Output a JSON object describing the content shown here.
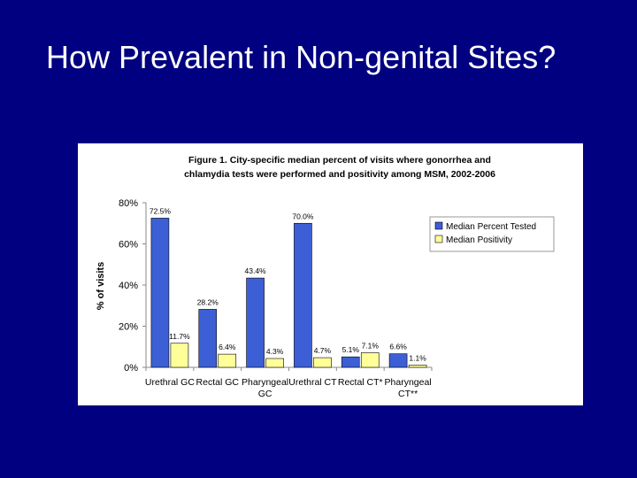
{
  "slide": {
    "title": "How Prevalent in Non-genital Sites?"
  },
  "chart_data": {
    "type": "bar",
    "title_lines": [
      "Figure 1. City-specific median percent of visits where gonorrhea and",
      "chlamydia tests were performed and positivity among MSM, 2002-2006"
    ],
    "ylabel": "% of visits",
    "xlabel": "",
    "ylim": [
      0,
      80
    ],
    "yticks": [
      0,
      20,
      40,
      60,
      80
    ],
    "ytick_labels": [
      "0%",
      "20%",
      "40%",
      "60%",
      "80%"
    ],
    "categories": [
      [
        "Urethral GC"
      ],
      [
        "Rectal GC"
      ],
      [
        "Pharyngeal",
        "GC"
      ],
      [
        "Urethral CT"
      ],
      [
        "Rectal CT*"
      ],
      [
        "Pharyngeal",
        "CT**"
      ]
    ],
    "series": [
      {
        "name": "Median Percent Tested",
        "color": "#3d5fd6",
        "values": [
          72.5,
          28.2,
          43.4,
          70.0,
          5.1,
          6.6
        ],
        "labels": [
          "72.5%",
          "28.2%",
          "43.4%",
          "70.0%",
          "5.1%",
          "6.6%"
        ]
      },
      {
        "name": "Median Positivity",
        "color": "#ffff99",
        "values": [
          11.7,
          6.4,
          4.3,
          4.7,
          7.1,
          1.1
        ],
        "labels": [
          "11.7%",
          "6.4%",
          "4.3%",
          "4.7%",
          "7.1%",
          "1.1%"
        ]
      }
    ],
    "legend_position": "top-right",
    "grid": false
  }
}
